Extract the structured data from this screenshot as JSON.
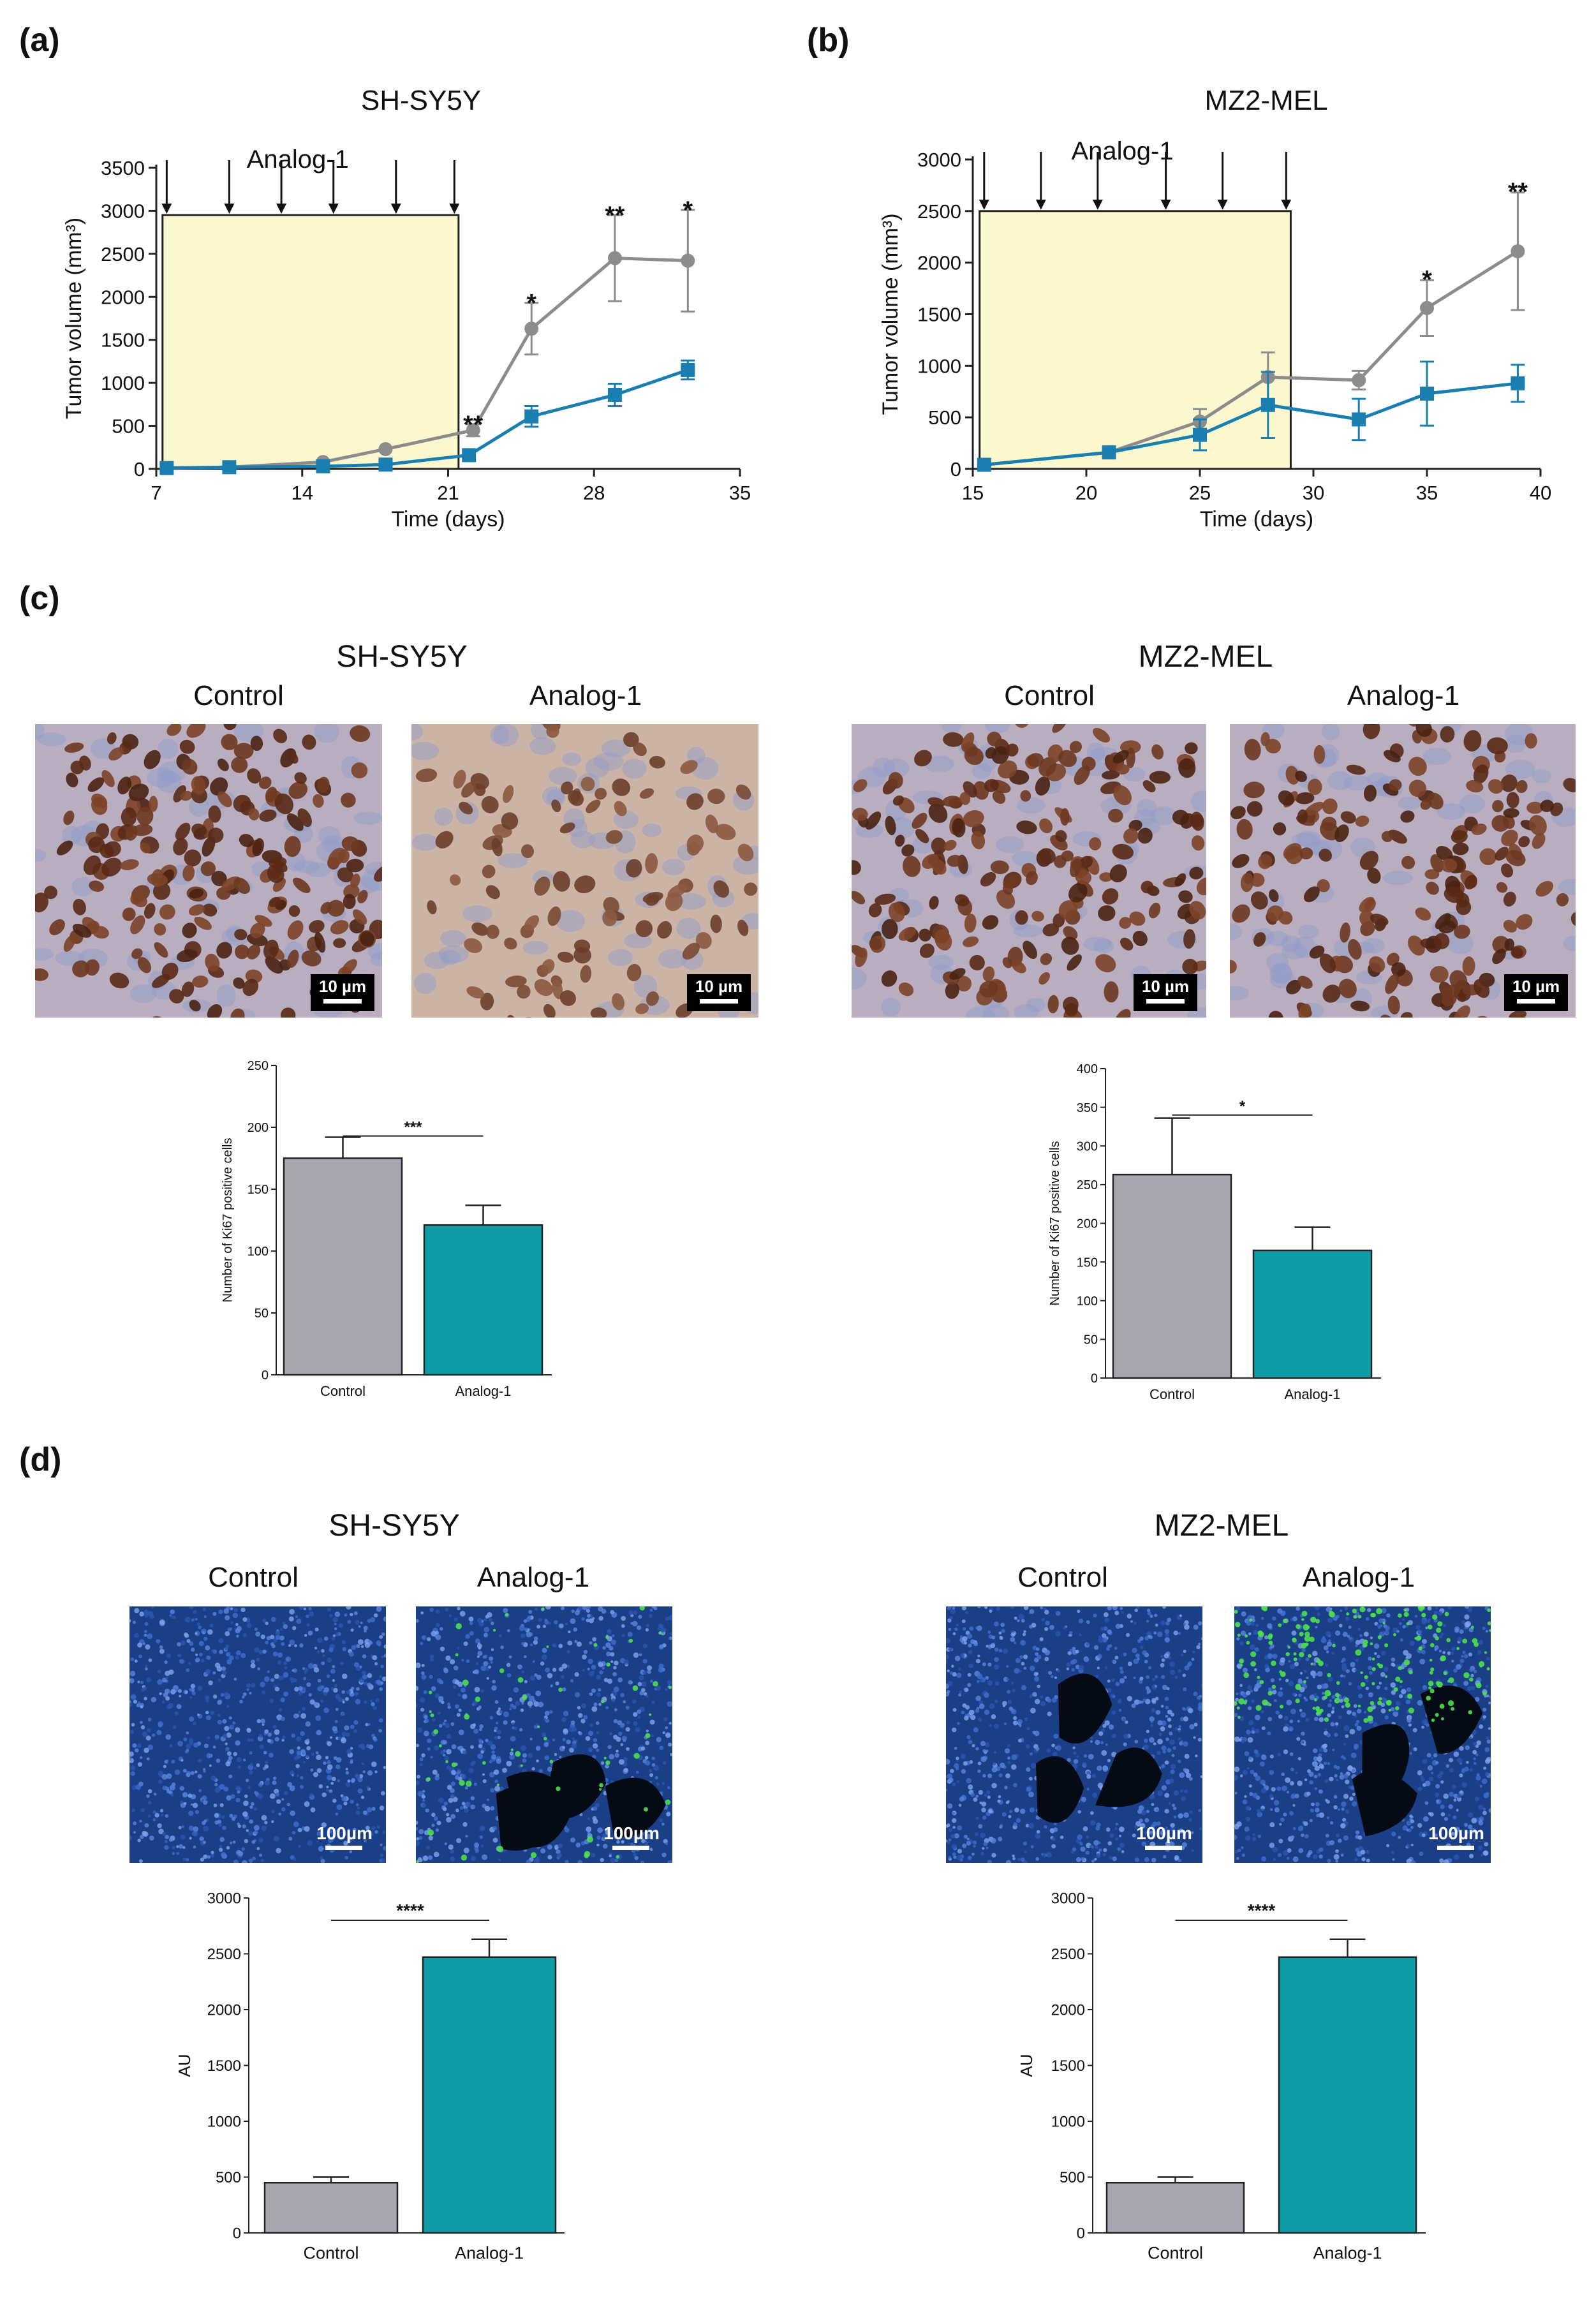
{
  "panels": [
    {
      "letter": "(a)",
      "title": "SH-SY5Y"
    },
    {
      "letter": "(b)",
      "title": "MZ2-MEL"
    },
    {
      "letter": "(c)",
      "title_left": "SH-SY5Y",
      "title_right": "MZ2-MEL"
    },
    {
      "letter": "(d)",
      "title_left": "SH-SY5Y",
      "title_right": "MZ2-MEL"
    }
  ],
  "colors": {
    "control": "#8c8c8c",
    "analog": "#1a7fb0",
    "bar_control": "#a7a6ae",
    "bar_analog": "#109ca7",
    "treatment_box": "#fbf7cf"
  },
  "micrographs": {
    "c": [
      {
        "label": "Control",
        "scale": "10 µm",
        "style": "ihc-dense"
      },
      {
        "label": "Analog-1",
        "scale": "10 µm",
        "style": "ihc-light"
      },
      {
        "label": "Control",
        "scale": "10 µm",
        "style": "ihc-dense"
      },
      {
        "label": "Analog-1",
        "scale": "10 µm",
        "style": "ihc-medium"
      }
    ],
    "d": [
      {
        "label": "Control",
        "scale": "100µm",
        "style": "fluor-blue"
      },
      {
        "label": "Analog-1",
        "scale": "100µm",
        "style": "fluor-green"
      },
      {
        "label": "Control",
        "scale": "100µm",
        "style": "fluor-blue-dark"
      },
      {
        "label": "Analog-1",
        "scale": "100µm",
        "style": "fluor-green-dense"
      }
    ]
  },
  "chart_data": [
    {
      "id": "a",
      "type": "line",
      "xlabel": "Time (days)",
      "ylabel": "Tumor volume (mm³)",
      "xlim": [
        7,
        35
      ],
      "ylim": [
        0,
        3500
      ],
      "xticks": [
        7,
        14,
        21,
        28,
        35
      ],
      "yticks": [
        0,
        500,
        1000,
        1500,
        2000,
        2500,
        3000,
        3500
      ],
      "treatment": {
        "label": "Analog-1",
        "x_start": 7.3,
        "x_end": 21.5,
        "y_top": 2950,
        "doses": [
          7.5,
          10.5,
          13,
          15.5,
          18.5,
          21.3
        ]
      },
      "series": [
        {
          "color": "control",
          "marker": "circle",
          "x": [
            7.5,
            10.5,
            15,
            18,
            22.2,
            25,
            29,
            32.5
          ],
          "y": [
            10,
            20,
            80,
            230,
            450,
            1630,
            2450,
            2420
          ],
          "err": [
            0,
            0,
            0,
            0,
            70,
            300,
            500,
            590
          ]
        },
        {
          "color": "analog",
          "marker": "square",
          "x": [
            7.5,
            10.5,
            15,
            18,
            22,
            25,
            29,
            32.5
          ],
          "y": [
            10,
            20,
            30,
            50,
            160,
            610,
            860,
            1150
          ],
          "err": [
            0,
            0,
            0,
            0,
            0,
            120,
            130,
            110
          ]
        }
      ],
      "annotations": [
        {
          "x": 22.2,
          "y": 520,
          "text": "**"
        },
        {
          "x": 25,
          "y": 1930,
          "text": "*"
        },
        {
          "x": 29,
          "y": 2950,
          "text": "**"
        },
        {
          "x": 32.5,
          "y": 3010,
          "text": "*"
        }
      ]
    },
    {
      "id": "b",
      "type": "line",
      "xlabel": "Time (days)",
      "ylabel": "Tumor volume (mm³)",
      "xlim": [
        15,
        40
      ],
      "ylim": [
        0,
        3000
      ],
      "xticks": [
        15,
        20,
        25,
        30,
        35,
        40
      ],
      "yticks": [
        0,
        500,
        1000,
        1500,
        2000,
        2500,
        3000
      ],
      "treatment": {
        "label": "Analog-1",
        "x_start": 15.3,
        "x_end": 29,
        "y_top": 2500,
        "doses": [
          15.5,
          18,
          20.5,
          23.5,
          26,
          28.8
        ]
      },
      "series": [
        {
          "color": "control",
          "marker": "circle",
          "x": [
            15.5,
            21,
            25,
            28,
            32,
            35,
            39
          ],
          "y": [
            40,
            160,
            460,
            890,
            860,
            1560,
            2110
          ],
          "err": [
            0,
            0,
            120,
            240,
            90,
            270,
            570
          ]
        },
        {
          "color": "analog",
          "marker": "square",
          "x": [
            15.5,
            21,
            25,
            28,
            32,
            35,
            39
          ],
          "y": [
            40,
            160,
            330,
            620,
            480,
            730,
            830
          ],
          "err": [
            0,
            50,
            150,
            320,
            200,
            310,
            180
          ]
        }
      ],
      "annotations": [
        {
          "x": 35,
          "y": 1840,
          "text": "*"
        },
        {
          "x": 39,
          "y": 2690,
          "text": "**"
        }
      ]
    },
    {
      "id": "c-left",
      "type": "bar",
      "categories": [
        "Control",
        "Analog-1"
      ],
      "values": [
        175,
        121
      ],
      "err": [
        17,
        16
      ],
      "ylabel": "Number of Ki67 positive cells",
      "ylim": [
        0,
        250
      ],
      "yticks": [
        0,
        50,
        100,
        150,
        200,
        250
      ],
      "significance": "***"
    },
    {
      "id": "c-right",
      "type": "bar",
      "categories": [
        "Control",
        "Analog-1"
      ],
      "values": [
        263,
        165
      ],
      "err": [
        73,
        30
      ],
      "ylabel": "Number of Ki67 positive cells",
      "ylim": [
        0,
        400
      ],
      "yticks": [
        0,
        50,
        100,
        150,
        200,
        250,
        300,
        350,
        400
      ],
      "significance": "*"
    },
    {
      "id": "d-left",
      "type": "bar",
      "categories": [
        "Control",
        "Analog-1"
      ],
      "values": [
        450,
        2470
      ],
      "err": [
        50,
        160
      ],
      "ylabel": "AU",
      "ylim": [
        0,
        3000
      ],
      "yticks": [
        0,
        500,
        1000,
        1500,
        2000,
        2500,
        3000
      ],
      "significance": "****"
    },
    {
      "id": "d-right",
      "type": "bar",
      "categories": [
        "Control",
        "Analog-1"
      ],
      "values": [
        450,
        2470
      ],
      "err": [
        50,
        160
      ],
      "ylabel": "AU",
      "ylim": [
        0,
        3000
      ],
      "yticks": [
        0,
        500,
        1000,
        1500,
        2000,
        2500,
        3000
      ],
      "significance": "****"
    }
  ]
}
